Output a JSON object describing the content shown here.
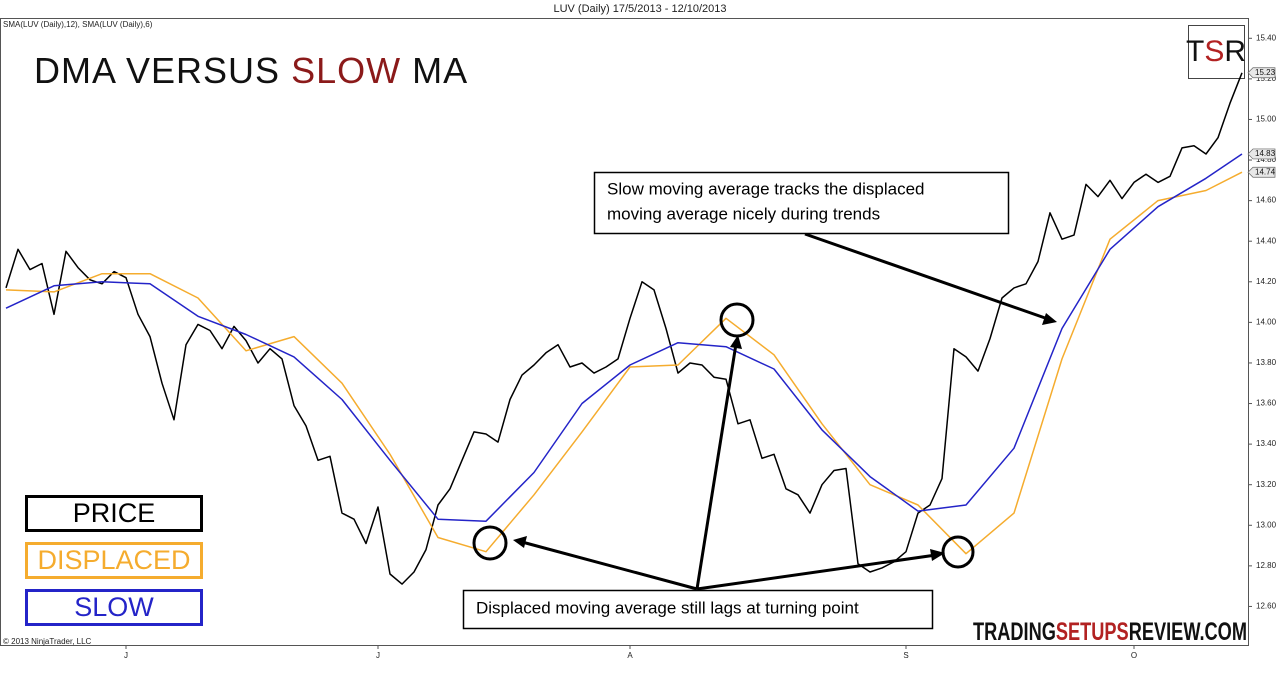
{
  "chart_data": {
    "type": "line",
    "title": "LUV (Daily)  17/5/2013 - 12/10/2013",
    "indicator_label": "SMA(LUV (Daily),12), SMA(LUV (Daily),6)",
    "heading": [
      "DMA VERSUS ",
      "SLOW",
      " MA"
    ],
    "logo": [
      "T",
      "S",
      "R"
    ],
    "watermark": [
      "TRADING",
      "SETUPS",
      "REVIEW.COM"
    ],
    "copyright": "© 2013 NinjaTrader, LLC",
    "annotations": [
      [
        "Slow moving average tracks the displaced",
        "moving average nicely during trends"
      ],
      [
        "Displaced moving average still lags at turning point"
      ]
    ],
    "xlim": [
      -0.5,
      103.5
    ],
    "xticks": [
      {
        "value": 10,
        "label": "J"
      },
      {
        "value": 31,
        "label": "J"
      },
      {
        "value": 52,
        "label": "A"
      },
      {
        "value": 75,
        "label": "S"
      },
      {
        "value": 94,
        "label": "O"
      }
    ],
    "ylim": [
      12.41,
      15.5
    ],
    "yticks": [
      {
        "value": 12.6,
        "label": "12.60"
      },
      {
        "value": 12.8,
        "label": "12.80"
      },
      {
        "value": 13,
        "label": "13.00"
      },
      {
        "value": 13.2,
        "label": "13.20"
      },
      {
        "value": 13.4,
        "label": "13.40"
      },
      {
        "value": 13.6,
        "label": "13.60"
      },
      {
        "value": 13.8,
        "label": "13.80"
      },
      {
        "value": 14,
        "label": "14.00"
      },
      {
        "value": 14.2,
        "label": "14.20"
      },
      {
        "value": 14.4,
        "label": "14.40"
      },
      {
        "value": 14.6,
        "label": "14.60"
      },
      {
        "value": 14.8,
        "label": "14.80"
      },
      {
        "value": 15,
        "label": "15.00"
      },
      {
        "value": 15.2,
        "label": "15.20"
      },
      {
        "value": 15.4,
        "label": "15.40"
      }
    ],
    "series": [
      {
        "name": "PRICE",
        "color": "#000000",
        "end_label": "15.23",
        "x": [
          0,
          1,
          2,
          3,
          4,
          5,
          6,
          7,
          8,
          9,
          10,
          11,
          12,
          13,
          14,
          15,
          16,
          17,
          18,
          19,
          20,
          21,
          22,
          23,
          24,
          25,
          26,
          27,
          28,
          29,
          30,
          31,
          32,
          33,
          34,
          35,
          36,
          37,
          38,
          39,
          40,
          41,
          42,
          43,
          44,
          45,
          46,
          47,
          48,
          49,
          50,
          51,
          52,
          53,
          54,
          55,
          56,
          57,
          58,
          59,
          60,
          61,
          62,
          63,
          64,
          65,
          66,
          67,
          68,
          69,
          70,
          71,
          72,
          73,
          74,
          75,
          76,
          77,
          78,
          79,
          80,
          81,
          82,
          83,
          84,
          85,
          86,
          87,
          88,
          89,
          90,
          91,
          92,
          93,
          94,
          95,
          96,
          97,
          98,
          99,
          100,
          101,
          102,
          103
        ],
        "values": [
          14.17,
          14.36,
          14.26,
          14.29,
          14.04,
          14.35,
          14.27,
          14.21,
          14.19,
          14.25,
          14.22,
          14.04,
          13.93,
          13.7,
          13.52,
          13.89,
          13.99,
          13.96,
          13.87,
          13.98,
          13.91,
          13.8,
          13.87,
          13.82,
          13.59,
          13.49,
          13.32,
          13.34,
          13.06,
          13.03,
          12.91,
          13.09,
          12.76,
          12.71,
          12.77,
          12.88,
          13.1,
          13.18,
          13.32,
          13.46,
          13.45,
          13.41,
          13.62,
          13.74,
          13.79,
          13.85,
          13.89,
          13.78,
          13.8,
          13.75,
          13.78,
          13.82,
          14.02,
          14.2,
          14.16,
          13.97,
          13.75,
          13.8,
          13.79,
          13.73,
          13.72,
          13.5,
          13.52,
          13.33,
          13.35,
          13.18,
          13.15,
          13.06,
          13.2,
          13.27,
          13.28,
          12.81,
          12.77,
          12.79,
          12.82,
          12.87,
          13.06,
          13.1,
          13.23,
          13.87,
          13.83,
          13.76,
          13.92,
          14.12,
          14.17,
          14.19,
          14.3,
          14.54,
          14.41,
          14.43,
          14.68,
          14.62,
          14.7,
          14.61,
          14.69,
          14.73,
          14.69,
          14.72,
          14.86,
          14.87,
          14.83,
          14.91,
          15.08,
          15.23
        ]
      },
      {
        "name": "DISPLACED",
        "color": "#f5ac2e",
        "end_label": "14.74",
        "x": [
          0,
          4,
          8,
          12,
          16,
          20,
          24,
          28,
          32,
          36,
          40,
          44,
          48,
          52,
          56,
          60,
          64,
          68,
          72,
          76,
          80,
          84,
          88,
          92,
          96,
          100,
          103
        ],
        "values": [
          14.16,
          14.15,
          14.24,
          14.24,
          14.12,
          13.86,
          13.93,
          13.7,
          13.35,
          12.94,
          12.87,
          13.15,
          13.46,
          13.78,
          13.79,
          14.02,
          13.84,
          13.5,
          13.2,
          13.1,
          12.86,
          13.06,
          13.82,
          14.41,
          14.6,
          14.65,
          14.74
        ]
      },
      {
        "name": "SLOW",
        "color": "#2424c8",
        "end_label": "14.83",
        "x": [
          0,
          4,
          8,
          12,
          16,
          20,
          24,
          28,
          32,
          36,
          40,
          44,
          48,
          52,
          56,
          60,
          64,
          68,
          72,
          76,
          80,
          84,
          88,
          92,
          96,
          100,
          103
        ],
        "values": [
          14.07,
          14.18,
          14.2,
          14.19,
          14.03,
          13.94,
          13.83,
          13.62,
          13.32,
          13.03,
          13.02,
          13.26,
          13.6,
          13.79,
          13.9,
          13.88,
          13.77,
          13.47,
          13.24,
          13.07,
          13.1,
          13.38,
          13.97,
          14.36,
          14.57,
          14.71,
          14.83
        ]
      }
    ]
  }
}
